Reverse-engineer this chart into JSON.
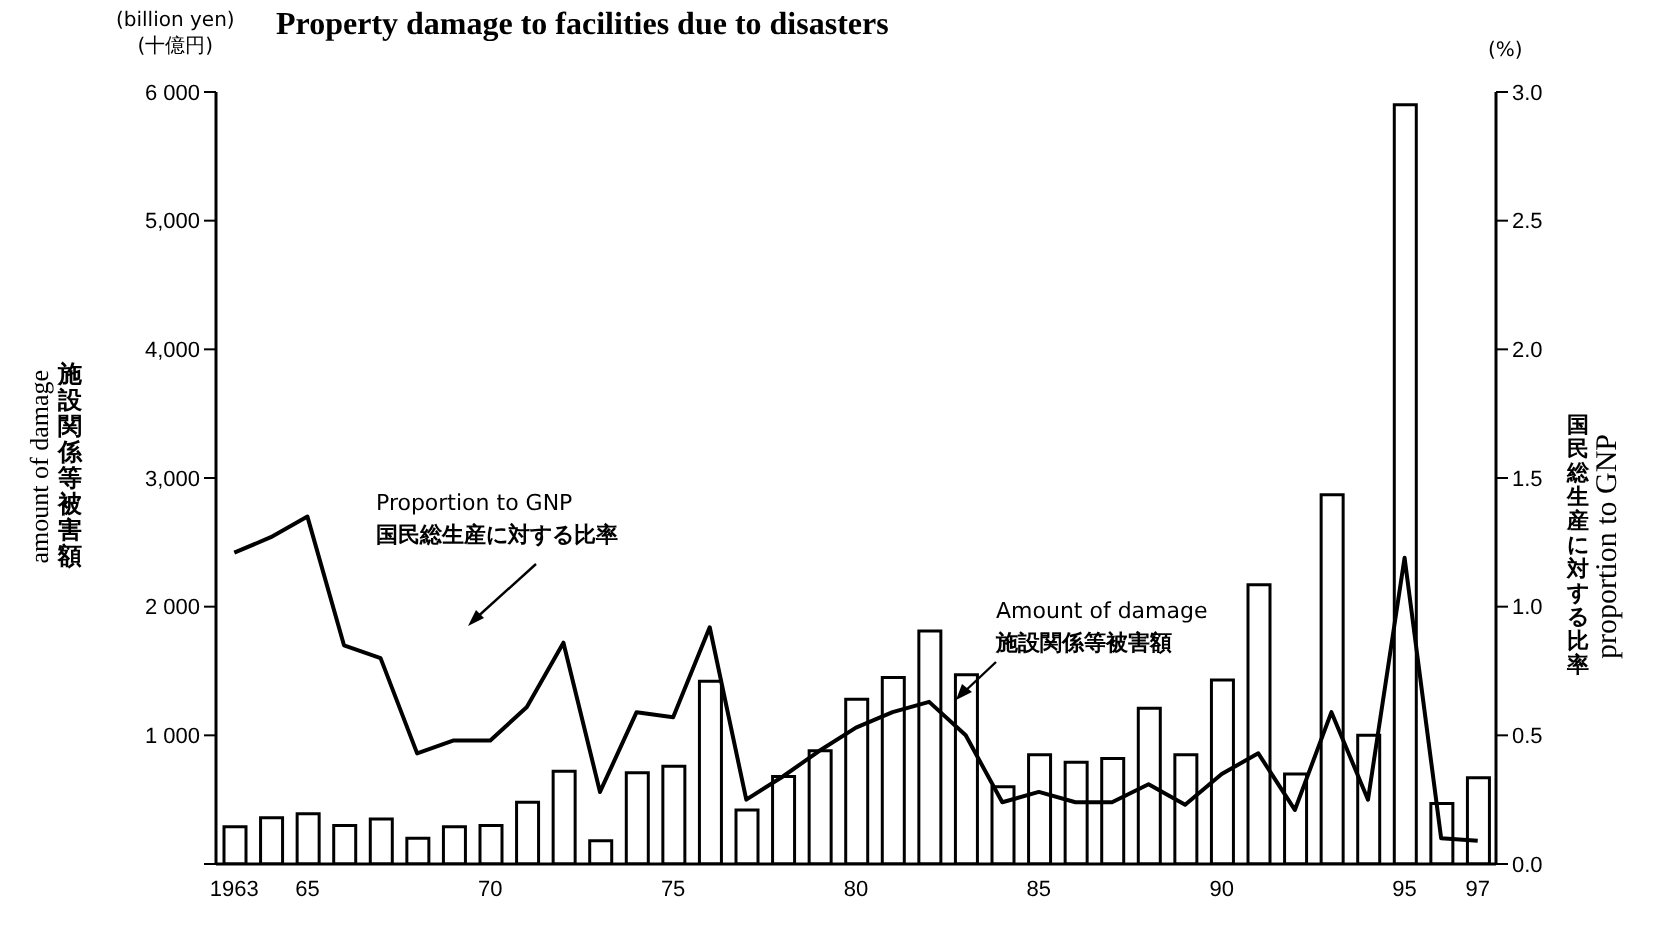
{
  "chart_data": {
    "type": "bar",
    "title": "Property damage to facilities due to disasters",
    "categories": [
      "1963",
      null,
      "65",
      null,
      null,
      null,
      null,
      "70",
      null,
      null,
      null,
      null,
      "75",
      null,
      null,
      null,
      null,
      "80",
      null,
      null,
      null,
      null,
      "85",
      null,
      null,
      null,
      null,
      "90",
      null,
      null,
      null,
      null,
      "95",
      null,
      "97"
    ],
    "series": [
      {
        "name": "Amount of damage\n施設関係等被害額",
        "color": "#ffffff",
        "values": [
          290,
          360,
          390,
          300,
          350,
          200,
          290,
          300,
          480,
          720,
          180,
          710,
          760,
          1420,
          420,
          680,
          880,
          1280,
          1450,
          1810,
          1470,
          600,
          850,
          790,
          820,
          1210,
          850,
          1430,
          2170,
          700,
          2870,
          1000,
          5900,
          470,
          670
        ]
      },
      {
        "name": "Proportion to GNP\n国民総生産に対する比率",
        "type": "line",
        "axis": "y2",
        "color": "#000000",
        "values": [
          1.21,
          1.27,
          1.35,
          0.85,
          0.8,
          0.43,
          0.48,
          0.48,
          0.61,
          0.86,
          0.28,
          0.59,
          0.57,
          0.92,
          0.25,
          0.34,
          0.44,
          0.53,
          0.59,
          0.63,
          0.5,
          0.24,
          0.28,
          0.24,
          0.24,
          0.31,
          0.23,
          0.35,
          0.43,
          0.21,
          0.59,
          0.25,
          1.19,
          0.1,
          0.09
        ]
      }
    ],
    "ylabel": "amount of damage\n施設関係等被害額",
    "y2label": "国民総生産に対する比率\nproportion to GNP",
    "annotations": [
      "(billion yen)\n(十億円)",
      "(%)"
    ],
    "ylim": [
      0,
      6000
    ],
    "yticks": [
      {
        "value": 0,
        "label": null
      },
      {
        "value": 1000,
        "label": "1 000"
      },
      {
        "value": 2000,
        "label": "2 000"
      },
      {
        "value": 3000,
        "label": "3,000"
      },
      {
        "value": 4000,
        "label": "4,000"
      },
      {
        "value": 5000,
        "label": "5,000"
      },
      {
        "value": 6000,
        "label": "6 000"
      }
    ],
    "y2lim": [
      0,
      3
    ],
    "y2ticks": [
      {
        "value": 0,
        "label": "0.0"
      },
      {
        "value": 0.5,
        "label": "0.5"
      },
      {
        "value": 1,
        "label": "1.0"
      },
      {
        "value": 1.5,
        "label": "1.5"
      },
      {
        "value": 2,
        "label": "2.0"
      },
      {
        "value": 2.5,
        "label": "2.5"
      },
      {
        "value": 3,
        "label": "3.0"
      }
    ],
    "marker": "none"
  }
}
